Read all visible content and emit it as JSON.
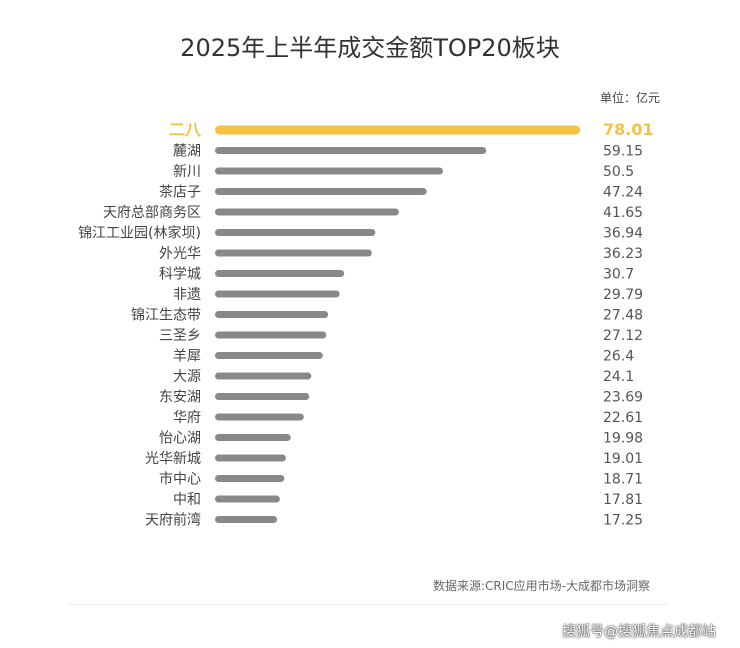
{
  "chart_data": {
    "type": "bar",
    "orientation": "horizontal",
    "title": "2025年上半年成交金额TOP20板块",
    "unit": "单位：亿元",
    "categories": [
      "二八",
      "麓湖",
      "新川",
      "茶店子",
      "天府总部商务区",
      "锦江工业园(林家坝)",
      "外光华",
      "科学城",
      "非遗",
      "锦江生态带",
      "三圣乡",
      "羊犀",
      "大源",
      "东安湖",
      "华府",
      "怡心湖",
      "光华新城",
      "市中心",
      "中和",
      "天府前湾"
    ],
    "values": [
      78.01,
      59.15,
      50.5,
      47.24,
      41.65,
      36.94,
      36.23,
      30.7,
      29.79,
      27.48,
      27.12,
      26.4,
      24.1,
      23.69,
      22.61,
      19.98,
      19.01,
      18.71,
      17.81,
      17.25
    ],
    "value_labels": [
      "78.01",
      "59.15",
      "50.5",
      "47.24",
      "41.65",
      "36.94",
      "36.23",
      "30.7",
      "29.79",
      "27.48",
      "27.12",
      "26.4",
      "24.1",
      "23.69",
      "22.61",
      "19.98",
      "19.01",
      "18.71",
      "17.81",
      "17.25"
    ],
    "highlight_color": "#F5C242",
    "bar_color": "#888888",
    "grid": false,
    "source": "数据来源:CRIC应用市场-大成都市场洞察"
  },
  "watermark": "搜狐号@搜狐焦点成都站"
}
